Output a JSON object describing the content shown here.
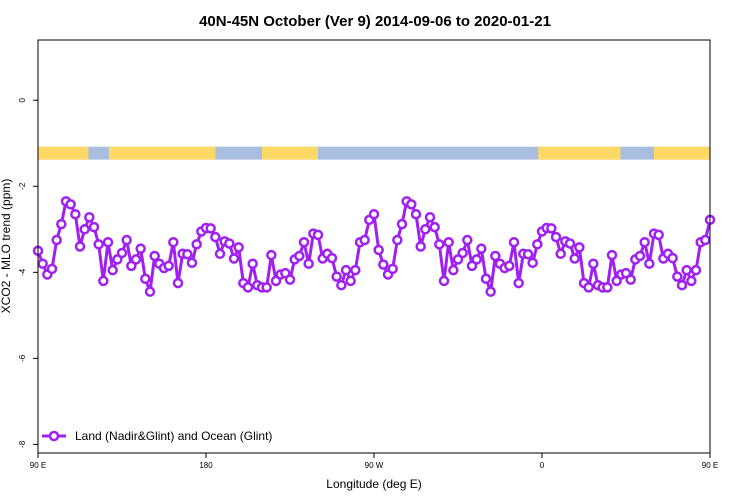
{
  "chart_data": {
    "type": "line",
    "title": "40N-45N October (Ver 9)   2014-09-06 to 2020-01-21",
    "xlabel": "Longitude (deg E)",
    "ylabel": "XCO2 - MLO trend (ppm)",
    "xlim": [
      90,
      450
    ],
    "ylim": [
      -8.2,
      1.4
    ],
    "x_ticks": [
      {
        "value": 90,
        "label": "90 E"
      },
      {
        "value": 180,
        "label": "180"
      },
      {
        "value": 270,
        "label": "90 W"
      },
      {
        "value": 360,
        "label": "0"
      },
      {
        "value": 450,
        "label": "90 E"
      },
      {
        "value": 540,
        "label": "180"
      }
    ],
    "y_ticks": [
      {
        "value": 0,
        "label": "0"
      },
      {
        "value": -2,
        "label": "-2"
      },
      {
        "value": -4,
        "label": "-4"
      },
      {
        "value": -6,
        "label": "-6"
      },
      {
        "value": -8,
        "label": "-8"
      }
    ],
    "grid": false,
    "legend_position": "bottom-left",
    "series": [
      {
        "name": "Land (Nadir&Glint) and Ocean (Glint)",
        "color": "#a020f0",
        "x": [
          90,
          92.5,
          95,
          97.5,
          100,
          102.5,
          105,
          107.5,
          110,
          112.5,
          115,
          117.5,
          120,
          122.5,
          125,
          127.5,
          130,
          132.5,
          135,
          137.5,
          140,
          142.5,
          145,
          147.5,
          150,
          152.5,
          155,
          157.5,
          160,
          162.5,
          165,
          167.5,
          170,
          172.5,
          175,
          177.5,
          180,
          182.5,
          185,
          187.5,
          190,
          192.5,
          195,
          197.5,
          200,
          202.5,
          205,
          207.5,
          210,
          212.5,
          215,
          217.5,
          220,
          222.5,
          225,
          227.5,
          230,
          232.5,
          235,
          237.5,
          240,
          242.5,
          245,
          247.5,
          250,
          252.5,
          255,
          257.5,
          260,
          262.5,
          265,
          267.5,
          270,
          272.5,
          275,
          277.5,
          280,
          282.5,
          285,
          287.5,
          290,
          292.5,
          295,
          297.5,
          300,
          302.5,
          305,
          307.5,
          310,
          312.5,
          315,
          317.5,
          320,
          322.5,
          325,
          327.5,
          330,
          332.5,
          335,
          337.5,
          340,
          342.5,
          345,
          347.5,
          350,
          352.5,
          355,
          357.5,
          360,
          362.5,
          365,
          367.5,
          370,
          372.5,
          375,
          377.5,
          380,
          382.5,
          385,
          387.5,
          390,
          392.5,
          395,
          397.5,
          400,
          402.5,
          405,
          407.5,
          410,
          412.5,
          415,
          417.5,
          420,
          422.5,
          425,
          427.5,
          430,
          432.5,
          435,
          437.5,
          440,
          442.5,
          445,
          447.5,
          450
        ],
        "y": [
          -3.5,
          -3.8,
          -4.05,
          -3.92,
          -3.25,
          -2.88,
          -2.35,
          -2.42,
          -2.65,
          -3.4,
          -3.0,
          -2.72,
          -2.95,
          -3.35,
          -4.2,
          -3.3,
          -3.95,
          -3.7,
          -3.55,
          -3.25,
          -3.85,
          -3.7,
          -3.45,
          -4.15,
          -4.45,
          -3.62,
          -3.8,
          -3.9,
          -3.85,
          -3.3,
          -4.25,
          -3.57,
          -3.58,
          -3.78,
          -3.35,
          -3.05,
          -2.97,
          -2.98,
          -3.18,
          -3.57,
          -3.28,
          -3.33,
          -3.68,
          -3.42,
          -4.25,
          -4.35,
          -3.8,
          -4.3,
          -4.35,
          -4.35,
          -3.6,
          -4.2,
          -4.05,
          -4.02,
          -4.17,
          -3.7,
          -3.62,
          -3.3,
          -3.8,
          -3.1,
          -3.13,
          -3.68,
          -3.57,
          -3.67,
          -4.1,
          -4.3,
          -3.95,
          -4.2,
          -3.95,
          -3.3,
          -3.25,
          -2.78,
          -2.65,
          -3.48,
          -3.82,
          -4.05,
          -3.92,
          -3.25,
          -2.88,
          -2.35,
          -2.42,
          -2.65,
          -3.4,
          -3.0,
          -2.72,
          -2.95,
          -3.35,
          -4.2,
          -3.3,
          -3.95,
          -3.7,
          -3.55,
          -3.25,
          -3.85,
          -3.7,
          -3.45,
          -4.15,
          -4.45,
          -3.62,
          -3.8,
          -3.9,
          -3.85,
          -3.3,
          -4.25,
          -3.57,
          -3.58,
          -3.78,
          -3.35,
          -3.05,
          -2.97,
          -2.98,
          -3.18,
          -3.57,
          -3.28,
          -3.33,
          -3.68,
          -3.42,
          -4.25,
          -4.35,
          -3.8,
          -4.3,
          -4.35,
          -4.35,
          -3.6,
          -4.2,
          -4.05,
          -4.02,
          -4.17,
          -3.7,
          -3.62,
          -3.3,
          -3.8,
          -3.1,
          -3.13,
          -3.68,
          -3.57,
          -3.67,
          -4.1,
          -4.3,
          -3.95,
          -4.2,
          -3.95,
          -3.3,
          -3.25,
          -2.78
        ]
      }
    ],
    "surface_band": {
      "y_range": [
        -1.38,
        -1.08
      ],
      "land_color": "#ffd966",
      "ocean_color": "#a9bedf",
      "land_segments": [
        [
          90,
          117
        ],
        [
          128,
          185
        ],
        [
          210,
          240
        ],
        [
          358,
          402
        ],
        [
          420,
          454
        ],
        [
          511,
          540
        ]
      ]
    }
  }
}
